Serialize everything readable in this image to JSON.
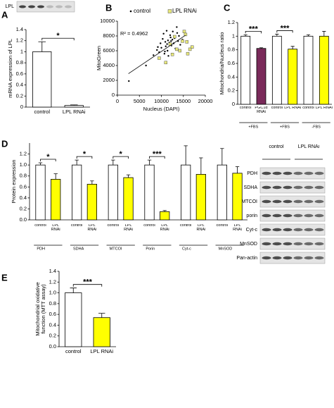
{
  "chart_data": [
    {
      "panel": "A",
      "type": "bar",
      "blot_label": "LPL",
      "y_label": "mRNA expression of LPL",
      "categories": [
        "control",
        "LPL RNAi"
      ],
      "values": [
        1.0,
        0.03
      ],
      "errors": [
        0.18,
        0.01
      ],
      "colors": [
        "#ffffff",
        "#ffffff"
      ],
      "significance": "*",
      "ylim": [
        0,
        1.4
      ],
      "yticks": [
        0,
        0.2,
        0.4,
        0.6,
        0.8,
        1,
        1.2,
        1.4
      ]
    },
    {
      "panel": "B",
      "type": "scatter",
      "x_label": "Nucleus (DAPI)",
      "y_label": "MitoGreen",
      "annotation": "R² = 0.4962",
      "series": [
        {
          "name": "control",
          "color": "#000000",
          "x": [
            2600,
            6500,
            8200,
            9000,
            9500,
            9800,
            10000,
            10300,
            10500,
            10700,
            10900,
            11000,
            11200,
            11300,
            11500,
            11600,
            11800,
            12000,
            12100,
            12300,
            12500,
            12600,
            12800,
            13000,
            13200,
            13500,
            13800,
            14000,
            14300,
            14800,
            11400,
            10800,
            12200,
            9200,
            13600
          ],
          "y": [
            1900,
            4000,
            5400,
            6100,
            5800,
            7000,
            6400,
            7600,
            8300,
            5600,
            7200,
            6600,
            8700,
            6900,
            7400,
            5300,
            7100,
            8100,
            7800,
            6700,
            7500,
            8600,
            7000,
            7700,
            6300,
            9200,
            7300,
            8000,
            6800,
            7500,
            6000,
            5900,
            7300,
            6500,
            8400
          ]
        },
        {
          "name": "LPL RNAi",
          "color": "#e8e87a",
          "x": [
            9500,
            11000,
            12500,
            13500,
            14200,
            14800,
            15200,
            15500,
            16000,
            16500,
            17000,
            13000,
            12000,
            15800
          ],
          "y": [
            5000,
            4400,
            5500,
            6200,
            6000,
            7300,
            8600,
            8200,
            5600,
            6200,
            6500,
            7900,
            6900,
            7200
          ]
        }
      ],
      "trendline": {
        "x": [
          2500,
          15500
        ],
        "y": [
          2900,
          8100
        ]
      },
      "xlim": [
        0,
        20000
      ],
      "xticks": [
        0,
        5000,
        10000,
        15000,
        20000
      ],
      "ylim": [
        0,
        10000
      ],
      "yticks": [
        0,
        2000,
        4000,
        6000,
        8000,
        10000
      ]
    },
    {
      "panel": "C",
      "type": "bar",
      "y_label": "Mitochondria/Nucleus ratio",
      "categories": [
        "control",
        "PGC1α RNAi",
        "control",
        "LPL RNAi",
        "control",
        "LPL RNAi"
      ],
      "values": [
        1.0,
        0.82,
        1.0,
        0.81,
        1.0,
        1.0
      ],
      "errors": [
        0.02,
        0.01,
        0.03,
        0.04,
        0.02,
        0.07
      ],
      "colors": [
        "#ffffff",
        "#7a2a5a",
        "#ffffff",
        "#ffff00",
        "#ffffff",
        "#ffff00"
      ],
      "groups": [
        "+FBS",
        "+FBS",
        "-FBS"
      ],
      "significance": [
        "***",
        "***",
        null
      ],
      "ylim": [
        0,
        1.2
      ],
      "yticks": [
        0,
        0.2,
        0.4,
        0.6,
        0.8,
        1,
        1.2
      ]
    },
    {
      "panel": "D",
      "type": "grouped_bar",
      "y_label": "Protein expression",
      "groups": [
        "PDH",
        "SDHA",
        "MTCOI",
        "Porin",
        "Cyt-c",
        "MnSOD"
      ],
      "series": [
        {
          "name": "control",
          "color": "#ffffff",
          "values": [
            1.0,
            1.0,
            1.0,
            1.0,
            1.0,
            1.0
          ],
          "errors": [
            0.04,
            0.09,
            0.09,
            0.09,
            0.35,
            0.3
          ]
        },
        {
          "name": "LPL RNAi",
          "color": "#ffff00",
          "values": [
            0.74,
            0.65,
            0.77,
            0.15,
            0.83,
            0.85
          ],
          "errors": [
            0.1,
            0.06,
            0.05,
            0.02,
            0.3,
            0.12
          ]
        }
      ],
      "significance": [
        "*",
        "*",
        "*",
        "***",
        null,
        null
      ],
      "ylim": [
        0,
        1.4
      ],
      "yticks": [
        {
          "value": 0,
          "label": "0.0"
        },
        0.2,
        0.4,
        0.6,
        0.8,
        {
          "value": 1,
          "label": "1.0"
        },
        1.2
      ],
      "blot_columns": [
        "control",
        "LPL RNAi"
      ],
      "blot_rows": [
        "PDH",
        "SDHA",
        "MTCOI",
        "porin",
        "Cyt-c",
        "MnSOD",
        "Pan-actin"
      ]
    },
    {
      "panel": "E",
      "type": "bar",
      "y_label": [
        "Mitochondrial oxidative",
        "function (MTT assay)"
      ],
      "categories": [
        "control",
        "LPL RNAi"
      ],
      "values": [
        1.0,
        0.54
      ],
      "errors": [
        0.09,
        0.08
      ],
      "colors": [
        "#ffffff",
        "#ffff00"
      ],
      "significance": "***",
      "ylim": [
        0,
        1.4
      ],
      "yticks": [
        {
          "value": 0,
          "label": "0.0"
        },
        0.2,
        0.4,
        0.6,
        0.8,
        {
          "value": 1,
          "label": "1.0"
        },
        1.2,
        1.4
      ]
    }
  ]
}
